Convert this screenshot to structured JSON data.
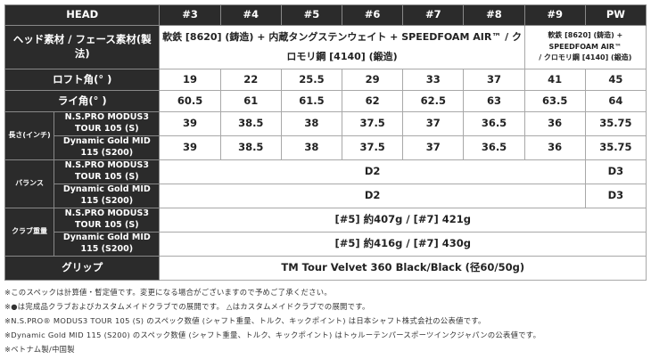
{
  "header": {
    "label": "HEAD",
    "clubs": [
      "#3",
      "#4",
      "#5",
      "#6",
      "#7",
      "#8",
      "#9",
      "PW"
    ]
  },
  "material": {
    "label": "ヘッド素材 / フェース素材(製法)",
    "main": "軟鉄 [8620] (鋳造) + 内蔵タングステンウェイト + SPEEDFOAM AIR™ / クロモリ鋼 [4140] (鍛造)",
    "nine_pw": "軟鉄 [8620] (鋳造) + SPEEDFOAM AIR™",
    "nine_pw_2": "/ クロモリ鋼 [4140] (鍛造)"
  },
  "loft": {
    "label": "ロフト角(° )",
    "values": [
      "19",
      "22",
      "25.5",
      "29",
      "33",
      "37",
      "41",
      "45"
    ]
  },
  "lie": {
    "label": "ライ角(° )",
    "values": [
      "60.5",
      "61",
      "61.5",
      "62",
      "62.5",
      "63",
      "63.5",
      "64"
    ]
  },
  "length": {
    "label": "長さ(インチ)",
    "rows": [
      {
        "shaft": "N.S.PRO MODUS3 TOUR 105 (S)",
        "values": [
          "39",
          "38.5",
          "38",
          "37.5",
          "37",
          "36.5",
          "36",
          "35.75"
        ]
      },
      {
        "shaft": "Dynamic Gold MID 115 (S200)",
        "values": [
          "39",
          "38.5",
          "38",
          "37.5",
          "37",
          "36.5",
          "36",
          "35.75"
        ]
      }
    ]
  },
  "balance": {
    "label": "バランス",
    "rows": [
      {
        "shaft": "N.S.PRO MODUS3 TOUR 105 (S)",
        "main": "D2",
        "pw": "D3"
      },
      {
        "shaft": "Dynamic Gold MID 115 (S200)",
        "main": "D2",
        "pw": "D3"
      }
    ]
  },
  "weight": {
    "label": "クラブ重量",
    "rows": [
      {
        "shaft": "N.S.PRO MODUS3 TOUR 105 (S)",
        "value": "[#5] 約407g / [#7] 421g"
      },
      {
        "shaft": "Dynamic Gold MID 115 (S200)",
        "value": "[#5] 約416g / [#7] 430g"
      }
    ]
  },
  "grip": {
    "label": "グリップ",
    "value": "TM Tour Velvet 360 Black/Black (径60/50g)"
  },
  "notes": [
    "※このスペックは計算値・暫定値です。変更になる場合がございますので予めご了承ください。",
    "※●は完成品クラブおよびカスタムメイドクラブでの展開です。 △はカスタムメイドクラブでの展開です。",
    "※N.S.PRO® MODUS3 TOUR 105 (S) のスペック数値 (シャフト重量、トルク、キックポイント) は日本シャフト株式会社の公表値です。",
    "※Dynamic Gold MID 115 (S200) のスペック数値 (シャフト重量、トルク、キックポイント) はトゥルーテンパースポーツインクジャパンの公表値です。",
    "※ベトナム製/中国製"
  ]
}
